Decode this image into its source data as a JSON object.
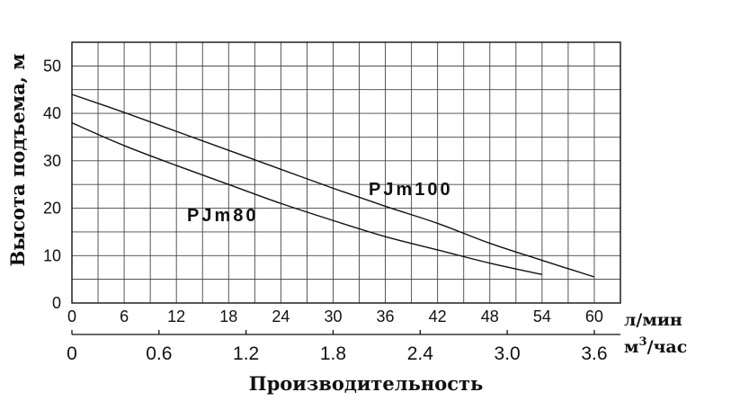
{
  "chart_data": {
    "type": "line",
    "ylabel": "Высота подъема, м",
    "xlabel": "Производительность",
    "x_unit_primary": "л/мин",
    "x_unit_secondary_base": "м",
    "x_unit_secondary_exp": "3",
    "x_unit_secondary_tail": "/час",
    "xlim": [
      0,
      63
    ],
    "ylim": [
      0,
      55
    ],
    "x_ticks": [
      "0",
      "6",
      "12",
      "18",
      "24",
      "30",
      "36",
      "42",
      "48",
      "54",
      "60"
    ],
    "x_ticks_secondary": [
      "0",
      "0.6",
      "1.2",
      "1.8",
      "2.4",
      "3.0",
      "3.6"
    ],
    "y_ticks": [
      "0",
      "10",
      "20",
      "30",
      "40",
      "50"
    ],
    "grid": true,
    "series": [
      {
        "name": "PJm100",
        "x": [
          0,
          6,
          12,
          18,
          24,
          30,
          36,
          42,
          48,
          54,
          60
        ],
        "y": [
          44,
          40.2,
          36.2,
          32.2,
          28.2,
          24.2,
          20.4,
          16.8,
          12.6,
          9,
          5.5
        ]
      },
      {
        "name": "PJm80",
        "x": [
          0,
          6,
          12,
          18,
          24,
          30,
          36,
          42,
          48,
          54
        ],
        "y": [
          38,
          33.2,
          29.0,
          25.0,
          21.0,
          17.4,
          14.0,
          11.2,
          8.4,
          6.0
        ]
      }
    ]
  }
}
